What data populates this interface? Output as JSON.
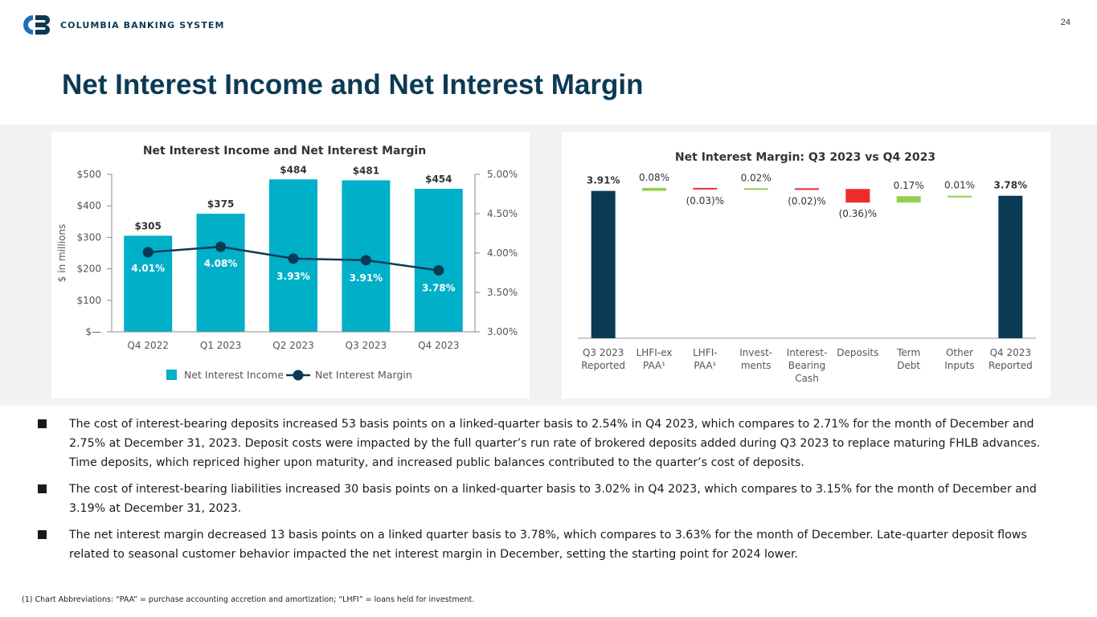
{
  "header": {
    "brand": "COLUMBIA BANKING SYSTEM",
    "page_number": "24",
    "title": "Net Interest Income and Net Interest Margin",
    "colors": {
      "navy": "#0b3a55",
      "teal": "#00afc8",
      "green": "#92d050",
      "red": "#ee2b2b"
    }
  },
  "chart_data": [
    {
      "type": "bar",
      "title": "Net Interest Income and Net Interest Margin",
      "categories": [
        "Q4 2022",
        "Q1 2023",
        "Q2 2023",
        "Q3 2023",
        "Q4 2023"
      ],
      "series": [
        {
          "name": "Net Interest Income",
          "type": "bar",
          "axis": "left",
          "values": [
            305,
            375,
            484,
            481,
            454
          ],
          "labels": [
            "$305",
            "$375",
            "$484",
            "$481",
            "$454"
          ]
        },
        {
          "name": "Net Interest Margin",
          "type": "line",
          "axis": "right",
          "values": [
            4.01,
            4.08,
            3.93,
            3.91,
            3.78
          ],
          "labels": [
            "4.01%",
            "4.08%",
            "3.93%",
            "3.91%",
            "3.78%"
          ]
        }
      ],
      "ylabel": "$ in millions",
      "ylim": [
        0,
        500
      ],
      "y_ticks": [
        "$—",
        "$100",
        "$200",
        "$300",
        "$400",
        "$500"
      ],
      "y2lim": [
        3.0,
        5.0
      ],
      "y2_ticks": [
        "3.00%",
        "3.50%",
        "4.00%",
        "4.50%",
        "5.00%"
      ],
      "legend_position": "bottom",
      "grid": false
    },
    {
      "type": "waterfall",
      "title": "Net Interest Margin: Q3 2023 vs Q4 2023",
      "categories": [
        "Q3 2023 Reported",
        "LHFI-ex PAA¹",
        "LHFI-PAA¹",
        "Invest-ments",
        "Interest-Bearing Cash",
        "Deposits",
        "Term Debt",
        "Other Inputs",
        "Q4 2023 Reported"
      ],
      "category_lines": [
        [
          "Q3 2023",
          "Reported"
        ],
        [
          "LHFI-ex",
          "PAA¹"
        ],
        [
          "LHFI-",
          "PAA¹"
        ],
        [
          "Invest-",
          "ments"
        ],
        [
          "Interest-",
          "Bearing",
          "Cash"
        ],
        [
          "Deposits"
        ],
        [
          "Term",
          "Debt"
        ],
        [
          "Other",
          "Inputs"
        ],
        [
          "Q4 2023",
          "Reported"
        ]
      ],
      "values": [
        3.91,
        0.08,
        -0.03,
        0.02,
        -0.02,
        -0.36,
        0.17,
        0.01,
        3.78
      ],
      "kinds": [
        "total",
        "delta",
        "delta",
        "delta",
        "delta",
        "delta",
        "delta",
        "delta",
        "total"
      ],
      "labels": [
        "3.91%",
        "0.08%",
        "(0.03)%",
        "0.02%",
        "(0.02)%",
        "(0.36)%",
        "0.17%",
        "0.01%",
        "3.78%"
      ]
    }
  ],
  "bullets": [
    "The cost of interest-bearing deposits increased 53 basis points on a linked-quarter basis to 2.54% in Q4 2023, which compares to 2.71% for the month of December and 2.75% at December 31, 2023. Deposit costs were impacted by the full quarter’s run rate of brokered deposits added during Q3 2023 to replace maturing FHLB advances. Time deposits, which repriced higher upon maturity, and increased public balances contributed to the quarter’s cost of deposits.",
    "The cost of interest-bearing liabilities increased 30 basis points on a linked-quarter basis to 3.02% in Q4 2023, which compares to 3.15% for the month of December and 3.19% at December 31, 2023.",
    "The net interest margin decreased 13 basis points on a linked quarter basis to 3.78%, which compares to 3.63% for the month of December. Late-quarter deposit flows related to seasonal customer behavior impacted the net interest margin in December, setting the starting point for 2024 lower."
  ],
  "footnote": "(1)  Chart Abbreviations: “PAA” = purchase accounting accretion and amortization; “LHFI” = loans held for investment."
}
